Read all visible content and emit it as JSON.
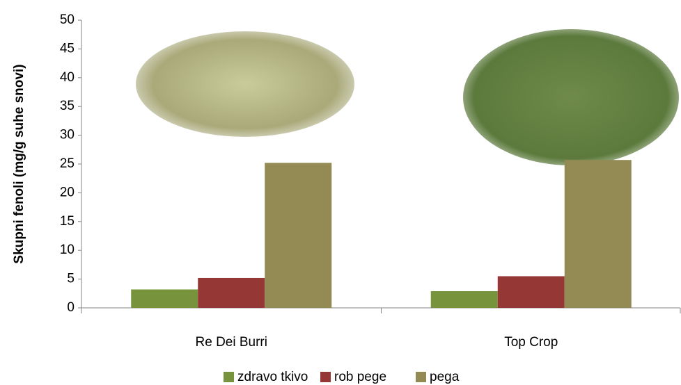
{
  "chart_data": {
    "type": "bar",
    "y_label": "Skupni fenoli (mg/g suhe snovi)",
    "categories": [
      "Re Dei Burri",
      "Top Crop"
    ],
    "series": [
      {
        "name": "zdravo tkivo",
        "color": "#77933c",
        "values": [
          3.2,
          2.9
        ]
      },
      {
        "name": "rob pege",
        "color": "#953735",
        "values": [
          5.2,
          5.5
        ]
      },
      {
        "name": "pega",
        "color": "#948a54",
        "values": [
          25.2,
          25.7
        ]
      }
    ],
    "ylim": [
      0,
      50
    ],
    "yticks": [
      0,
      5,
      10,
      15,
      20,
      25,
      30,
      35,
      40,
      45,
      50
    ],
    "legend": "bottom"
  }
}
